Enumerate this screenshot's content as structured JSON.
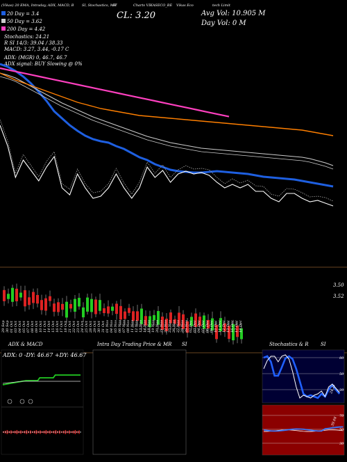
{
  "header": {
    "top_line": [
      "(Vikas) 20 EMA, Intraday, ADX, MACD, B",
      "SI, Stochastics, MR",
      "ST",
      "Charts VIKASECO_BE",
      "Vikas Eco",
      "tech Limit"
    ],
    "close_label": "CL: 3.20",
    "avg_vol": "Avg Vol: 10.905 M",
    "day_vol": "Day Vol: 0   M"
  },
  "legend": {
    "ema20": "20  Day = 3.4",
    "ema50": "50  Day = 3.62",
    "ema200": "200  Day = 4.42",
    "stochastics": "Stochastics: 24.21",
    "rsi": "R              SI 14/3: 39.04  / 38.33",
    "macd": "MACD: 3.27, 3.44, -0.17  C",
    "adx": "ADX:                          (MGR) 0, 46.7, 46.7",
    "adx_signal": "ADX  signal:                             BUY Slowing @ 0%"
  },
  "colors": {
    "background": "#000000",
    "ema20": "#1e5fe0",
    "ema50": "#cccccc",
    "ema200": "#ff7f00",
    "pink": "#ff40c0",
    "up_candle": "#22cc22",
    "down_candle": "#dd2222",
    "adx_green": "#22cc22",
    "stoch_blue": "#2060ff",
    "rsi_bg": "#8b0000"
  },
  "price_axis": {
    "labels": [
      "3.50",
      "3.52"
    ]
  },
  "dates": [
    "29 Sep",
    "30 Sep",
    "01 Oct",
    "03 Oct",
    "04 Oct",
    "05 Oct",
    "07 Oct",
    "08 Oct",
    "09 Oct",
    "10 Oct",
    "11 Oct",
    "14 Oct",
    "15 Oct",
    "16 Oct",
    "17 Oct",
    "18 Oct",
    "21 Oct",
    "22 Oct",
    "23 Oct",
    "24 Oct",
    "25 Oct",
    "28 Oct",
    "29 Oct",
    "30 Oct",
    "31 Oct",
    "01 Nov",
    "04 Nov",
    "05 Nov",
    "06 Nov",
    "07 Nov",
    "08 Nov",
    "11 Nov",
    "12 Nov",
    "13 Nov",
    "14 Nov",
    "18 Nov",
    "19 Nov",
    "20 Nov",
    "21 Nov",
    "22 Nov",
    "25 Nov",
    "26 Nov",
    "27 Nov",
    "28 Nov",
    "29 Nov",
    "02 Dec",
    "03 Dec",
    "04 Dec",
    "05 Dec",
    "06 Dec",
    "09 Dec",
    "10 Dec",
    "11 Dec",
    "12 Dec",
    "13 Dec",
    "16 Dec",
    "17 Dec",
    "18 Dec"
  ],
  "panels": {
    "adx_macd": {
      "title": "ADX  & MACD",
      "readout": "ADX: 0  -DY: 46.67  +DY: 46.67"
    },
    "intraday": {
      "title": "Intra  Day Trading Price  & MR",
      "title_right": "SI"
    },
    "stoch": {
      "title": "Stochastics & R",
      "title_right": "SI",
      "axis": [
        "80",
        "50",
        "20"
      ],
      "value_label": "24.21"
    },
    "rsi": {
      "axis": [
        "70",
        "50",
        "30"
      ],
      "value_label": "39.04"
    }
  },
  "chart_data": {
    "type": "line",
    "series": [
      {
        "name": "20  Day",
        "values": [
          92,
          96,
          102,
          110,
          120,
          132,
          145,
          160,
          170,
          180,
          188,
          195,
          200,
          203,
          205,
          210,
          214,
          220,
          226,
          230,
          236,
          240,
          244,
          246,
          247,
          248,
          248,
          247,
          246,
          247,
          248,
          249,
          250,
          252,
          254,
          255,
          256,
          257,
          258,
          260,
          262,
          264,
          266,
          268
        ]
      },
      {
        "name": "50  Day",
        "values": [
          105,
          108,
          112,
          118,
          124,
          130,
          136,
          142,
          148,
          153,
          158,
          163,
          168,
          172,
          176,
          180,
          184,
          188,
          192,
          196,
          199,
          202,
          205,
          207,
          209,
          211,
          213,
          214,
          215,
          216,
          217,
          218,
          219,
          220,
          221,
          222,
          223,
          224,
          225,
          226,
          228,
          231,
          234,
          238
        ]
      },
      {
        "name": "200  Day",
        "values": [
          105,
          110,
          115,
          119,
          123,
          127,
          131,
          135,
          139,
          143,
          147,
          150,
          153,
          156,
          158,
          160,
          162,
          164,
          166,
          167,
          168,
          169,
          170,
          171,
          172,
          173,
          174,
          175,
          176,
          177,
          178,
          179,
          180,
          181,
          182,
          183,
          184,
          185,
          186,
          187,
          189,
          191,
          193,
          195
        ]
      },
      {
        "values": [
          48,
          50,
          52,
          54,
          56,
          58,
          60,
          62,
          64,
          66,
          68,
          70,
          72,
          74,
          76,
          78,
          80,
          82,
          84,
          86,
          88,
          90,
          92,
          94,
          96,
          98,
          100,
          102,
          104,
          106,
          108,
          110,
          112,
          114,
          116,
          118,
          120,
          122,
          124,
          126,
          128,
          130,
          132,
          136
        ]
      },
      {
        "values": [
          180,
          210,
          255,
          230,
          245,
          260,
          240,
          225,
          270,
          280,
          250,
          270,
          285,
          282,
          270,
          250,
          270,
          285,
          270,
          240,
          255,
          245,
          262,
          250,
          246,
          250,
          248,
          252,
          262,
          270,
          265,
          270,
          265,
          275,
          275,
          285,
          290,
          278,
          278,
          285,
          290,
          288,
          292,
          296
        ]
      }
    ]
  }
}
